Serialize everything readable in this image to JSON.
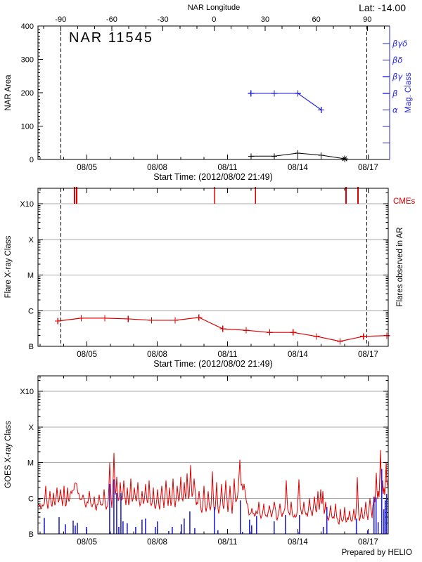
{
  "page": {
    "lat_label": "Lat: -14.00",
    "prepared_by": "Prepared by HELIO"
  },
  "colors": {
    "red": "#dd0000",
    "blue": "#2424d8",
    "grid": "#a8a8a8",
    "axis": "#000000",
    "background": "#ffffff"
  },
  "time_axis": {
    "title": "Start Time: (2012/08/02 21:49)",
    "start_day": 2.91,
    "end_day": 17.86,
    "major_days": [
      5,
      8,
      11,
      14,
      17
    ],
    "major_labels": [
      "08/05",
      "08/08",
      "08/11",
      "08/14",
      "08/17"
    ],
    "minor_days": [
      3,
      4,
      5,
      6,
      7,
      8,
      9,
      10,
      11,
      12,
      13,
      14,
      15,
      16,
      17
    ],
    "limb_days": [
      3.88,
      16.95
    ]
  },
  "chart_data": [
    {
      "id": "nar-area",
      "type": "line",
      "title": "NAR 11545",
      "ylabel": "NAR Area",
      "ylim": [
        0,
        400
      ],
      "y_major": [
        0,
        100,
        200,
        300,
        400
      ],
      "y_minor_step": 10,
      "top_axis": {
        "label": "NAR Longitude",
        "major": [
          -90,
          -60,
          -30,
          0,
          30,
          60,
          90
        ],
        "minor_step": 10,
        "range": [
          -103,
          102.5
        ]
      },
      "right_axis": {
        "label": "Mag. Class",
        "classes": [
          "βγδ",
          "βδ",
          "βγ",
          "β",
          "α"
        ],
        "extra_tick_count": 2
      },
      "area_series": {
        "name": "NAR Area",
        "days": [
          12,
          13,
          14,
          15,
          16
        ],
        "values": [
          10,
          10,
          19,
          13,
          2
        ],
        "end_marker": "asterisk"
      },
      "mag_series": {
        "name": "Magnetic Class",
        "days": [
          12,
          13,
          14,
          15
        ],
        "classes": [
          "β",
          "β",
          "β",
          "α"
        ]
      }
    },
    {
      "id": "flares-in-ar",
      "type": "line",
      "ylabel": "Flare X-ray Class",
      "right_label": "Flares observed in AR",
      "cme_label": "CMEs",
      "classes": [
        "B",
        "C",
        "M",
        "X",
        "X10"
      ],
      "cme_days": [
        4.47,
        4.56,
        10.45,
        12.19,
        16.06,
        16.57
      ],
      "flare_series": {
        "days": [
          3.76,
          4.76,
          5.76,
          6.76,
          7.76,
          8.76,
          9.78,
          10.8,
          11.8,
          12.8,
          13.8,
          14.8,
          15.8,
          16.8,
          17.8
        ],
        "levels_above_B": [
          0.71,
          0.79,
          0.79,
          0.77,
          0.73,
          0.73,
          0.81,
          0.49,
          0.45,
          0.39,
          0.39,
          0.28,
          0.14,
          0.28,
          0.3
        ]
      }
    },
    {
      "id": "goes-xray",
      "type": "line",
      "ylabel": "GOES X-ray Class",
      "classes": [
        "B",
        "C",
        "M",
        "X",
        "X10"
      ],
      "baseline": [
        [
          2.91,
          0.72
        ],
        [
          4.14,
          0.72
        ],
        [
          4.29,
          1.0
        ],
        [
          4.53,
          1.4
        ],
        [
          4.74,
          0.95
        ],
        [
          4.95,
          0.75
        ],
        [
          5.79,
          0.7
        ],
        [
          6.24,
          0.78
        ],
        [
          8.2,
          0.72
        ],
        [
          9.34,
          0.8
        ],
        [
          9.58,
          0.95
        ],
        [
          9.76,
          0.7
        ],
        [
          10.3,
          0.6
        ],
        [
          11.2,
          0.62
        ],
        [
          11.41,
          0.95
        ],
        [
          11.62,
          1.25
        ],
        [
          11.95,
          0.6
        ],
        [
          12.25,
          0.48
        ],
        [
          13.9,
          0.5
        ],
        [
          14.65,
          0.55
        ],
        [
          15.25,
          0.4
        ],
        [
          16.0,
          0.28
        ],
        [
          16.75,
          0.3
        ],
        [
          17.2,
          0.5
        ],
        [
          17.65,
          0.7
        ],
        [
          17.86,
          0.85
        ]
      ],
      "spikes": [
        [
          3.24,
          1.35
        ],
        [
          3.42,
          1.2
        ],
        [
          3.57,
          1.15
        ],
        [
          3.72,
          1.3
        ],
        [
          3.87,
          1.25
        ],
        [
          4.02,
          1.35
        ],
        [
          4.17,
          1.3
        ],
        [
          4.83,
          1.1
        ],
        [
          5.1,
          1.2
        ],
        [
          5.31,
          1.05
        ],
        [
          5.52,
          1.1
        ],
        [
          5.73,
          1.25
        ],
        [
          5.97,
          2.0
        ],
        [
          6.15,
          2.27
        ],
        [
          6.27,
          1.6
        ],
        [
          6.42,
          1.45
        ],
        [
          6.57,
          1.5
        ],
        [
          6.72,
          1.3
        ],
        [
          6.87,
          1.55
        ],
        [
          7.02,
          1.3
        ],
        [
          7.17,
          1.45
        ],
        [
          7.35,
          1.2
        ],
        [
          7.5,
          1.4
        ],
        [
          7.65,
          1.5
        ],
        [
          7.83,
          1.3
        ],
        [
          8.01,
          1.25
        ],
        [
          8.19,
          1.35
        ],
        [
          8.37,
          1.5
        ],
        [
          8.52,
          1.3
        ],
        [
          8.67,
          1.55
        ],
        [
          8.85,
          1.35
        ],
        [
          9.0,
          1.6
        ],
        [
          9.15,
          1.45
        ],
        [
          9.27,
          1.7
        ],
        [
          9.42,
          1.93
        ],
        [
          9.57,
          1.55
        ],
        [
          9.78,
          1.2
        ],
        [
          9.99,
          1.35
        ],
        [
          10.17,
          1.2
        ],
        [
          10.35,
          1.75
        ],
        [
          10.53,
          1.45
        ],
        [
          10.74,
          1.4
        ],
        [
          10.92,
          1.5
        ],
        [
          11.1,
          1.35
        ],
        [
          11.28,
          1.55
        ],
        [
          11.52,
          2.08
        ],
        [
          11.7,
          1.4
        ],
        [
          12.33,
          0.9
        ],
        [
          12.54,
          0.85
        ],
        [
          12.78,
          0.8
        ],
        [
          12.99,
          0.9
        ],
        [
          13.23,
          0.85
        ],
        [
          13.5,
          1.5
        ],
        [
          13.71,
          0.9
        ],
        [
          14.04,
          1.53
        ],
        [
          14.25,
          0.9
        ],
        [
          14.49,
          1.0
        ],
        [
          14.7,
          1.05
        ],
        [
          14.85,
          1.2
        ],
        [
          14.97,
          1.25
        ],
        [
          15.06,
          1.2
        ],
        [
          15.18,
          0.9
        ],
        [
          15.39,
          0.8
        ],
        [
          15.6,
          0.85
        ],
        [
          15.81,
          0.7
        ],
        [
          15.99,
          0.75
        ],
        [
          16.2,
          0.65
        ],
        [
          16.38,
          0.7
        ],
        [
          16.53,
          1.59
        ],
        [
          16.71,
          0.75
        ],
        [
          16.89,
          0.9
        ],
        [
          17.07,
          1.0
        ],
        [
          17.25,
          1.05
        ],
        [
          17.34,
          1.71
        ],
        [
          17.43,
          1.2
        ],
        [
          17.52,
          2.35
        ],
        [
          17.61,
          1.5
        ],
        [
          17.67,
          1.3
        ],
        [
          17.76,
          2.0
        ],
        [
          17.82,
          1.4
        ]
      ],
      "bars": [
        [
          3.18,
          0.45
        ],
        [
          3.81,
          0.47
        ],
        [
          4.08,
          0.27
        ],
        [
          4.41,
          0.37
        ],
        [
          4.5,
          0.23
        ],
        [
          4.59,
          0.31
        ],
        [
          4.98,
          0.2
        ],
        [
          5.97,
          1.4
        ],
        [
          6.15,
          1.53
        ],
        [
          6.27,
          1.14
        ],
        [
          6.36,
          0.2
        ],
        [
          6.45,
          1.14
        ],
        [
          6.54,
          0.35
        ],
        [
          6.72,
          0.3
        ],
        [
          7.08,
          0.2
        ],
        [
          7.35,
          0.4
        ],
        [
          7.5,
          0.43
        ],
        [
          7.92,
          0.2
        ],
        [
          8.01,
          0.35
        ],
        [
          8.49,
          0.08
        ],
        [
          8.64,
          0.2
        ],
        [
          9.03,
          0.27
        ],
        [
          9.15,
          0.43
        ],
        [
          9.39,
          0.63
        ],
        [
          9.6,
          0.16
        ],
        [
          10.44,
          0.75
        ],
        [
          10.59,
          0.1
        ],
        [
          11.55,
          0.94
        ],
        [
          11.64,
          0.06
        ],
        [
          11.94,
          0.4
        ],
        [
          12.03,
          0.24
        ],
        [
          12.24,
          0.5
        ],
        [
          12.99,
          0.35
        ],
        [
          13.47,
          0.53
        ],
        [
          14.01,
          0.06
        ],
        [
          14.07,
          0.53
        ],
        [
          15.09,
          0.2
        ],
        [
          15.24,
          0.75
        ],
        [
          16.5,
          0.43
        ],
        [
          16.98,
          0.1
        ],
        [
          17.25,
          1.04
        ],
        [
          17.34,
          1.02
        ],
        [
          17.43,
          0.33
        ],
        [
          17.58,
          1.82
        ],
        [
          17.67,
          0.69
        ],
        [
          17.73,
          0.94
        ],
        [
          17.79,
          1.12
        ]
      ]
    }
  ]
}
